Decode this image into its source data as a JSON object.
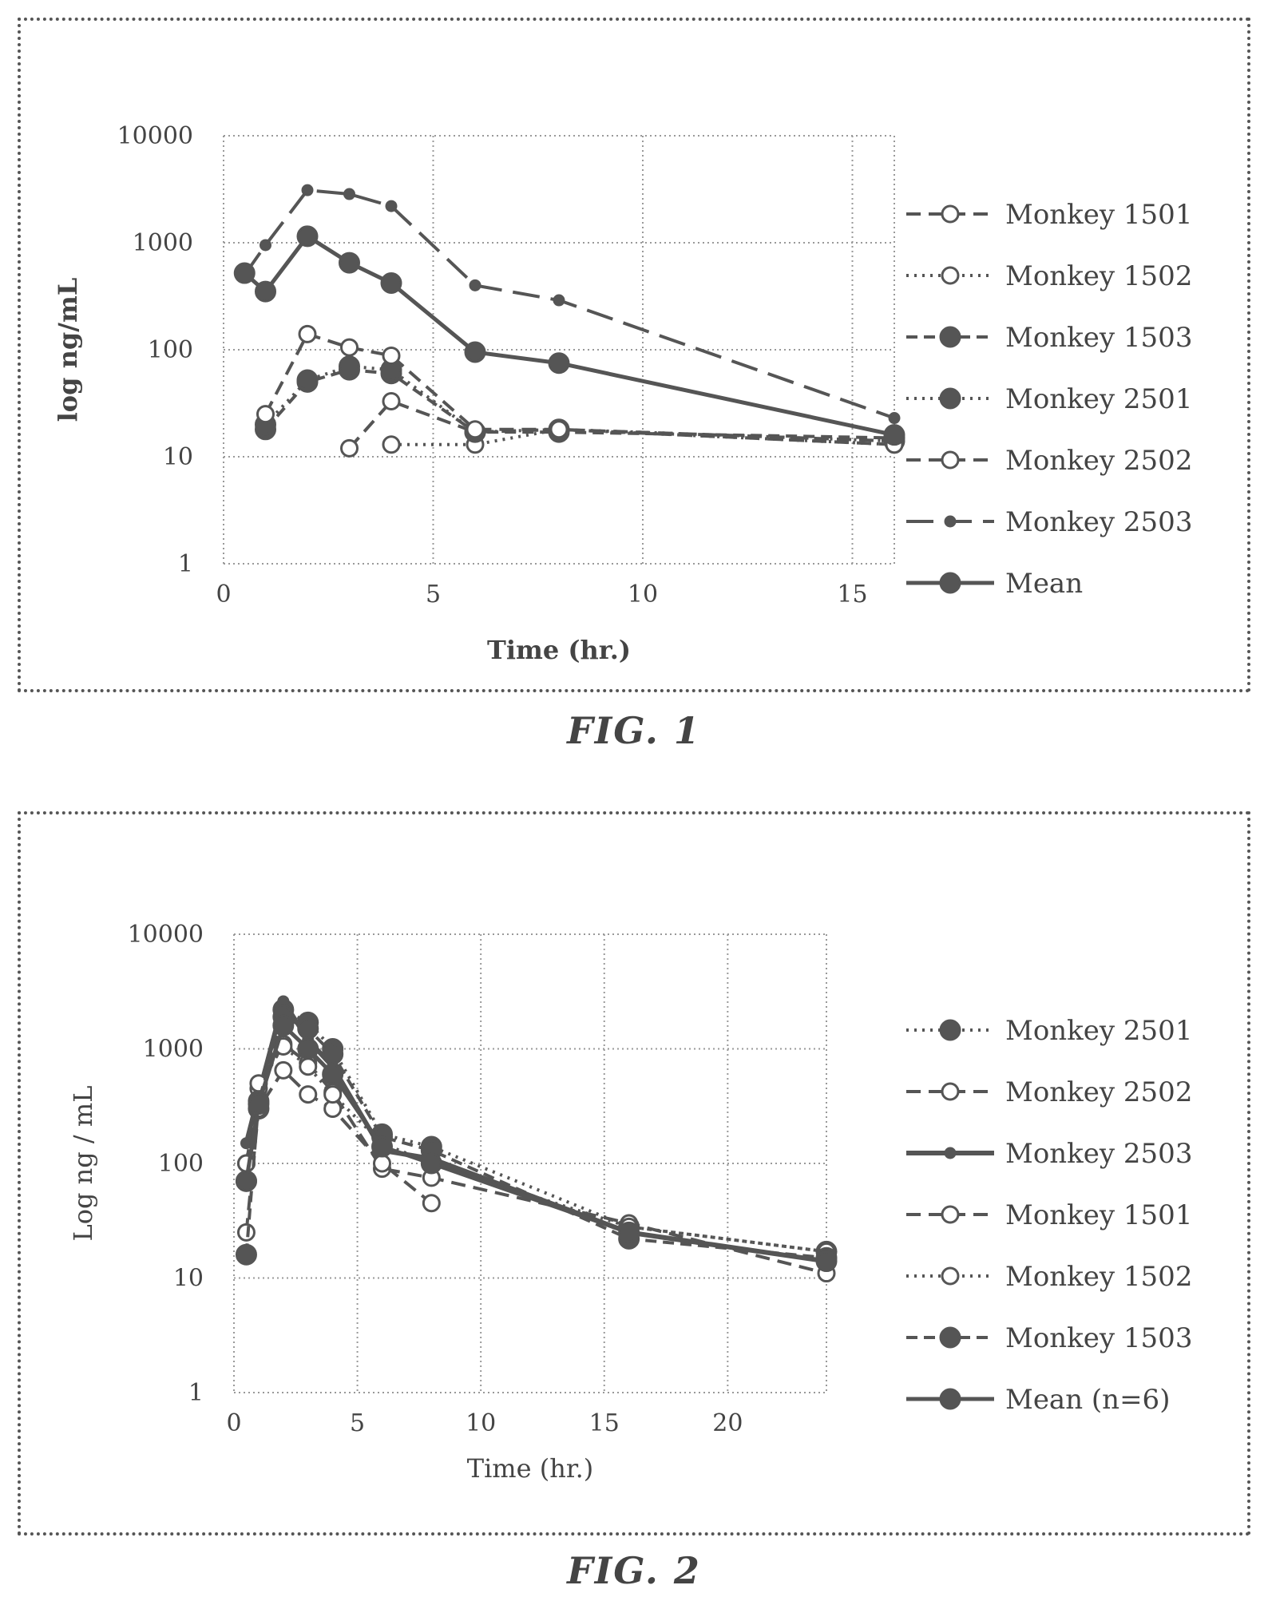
{
  "chart_data": [
    {
      "type": "line",
      "yscale": "log",
      "xlabel": "Time (hr.)",
      "ylabel": "log ng/mL",
      "xlim": [
        0,
        16
      ],
      "ylim": [
        1,
        10000
      ],
      "xticks": [
        "0",
        "5",
        "10",
        "15"
      ],
      "yticks": [
        "1",
        "10",
        "100",
        "1000",
        "10000"
      ],
      "grid": true,
      "legend_position": "right",
      "series": [
        {
          "name": "Monkey 1501",
          "style": "dash-open",
          "x": [
            3,
            4,
            6,
            8,
            16
          ],
          "y": [
            12,
            33,
            17,
            18,
            14
          ]
        },
        {
          "name": "Monkey 1502",
          "style": "dot-open",
          "x": [
            4,
            6,
            8,
            16
          ],
          "y": [
            13,
            13,
            18,
            13
          ]
        },
        {
          "name": "Monkey 1503",
          "style": "dash-filled",
          "x": [
            1,
            2,
            3,
            4,
            6,
            8,
            16
          ],
          "y": [
            18,
            50,
            65,
            60,
            17,
            17,
            15
          ]
        },
        {
          "name": "Monkey 2501",
          "style": "dot-filled",
          "x": [
            1,
            2,
            3,
            4,
            6,
            8,
            16
          ],
          "y": [
            20,
            52,
            70,
            65,
            17,
            18,
            14
          ]
        },
        {
          "name": "Monkey 2502",
          "style": "dash-open",
          "x": [
            1,
            2,
            3,
            4,
            6,
            8,
            16
          ],
          "y": [
            25,
            140,
            105,
            88,
            18,
            18,
            13
          ]
        },
        {
          "name": "Monkey 2503",
          "style": "longdash-small",
          "x": [
            0.5,
            1,
            2,
            3,
            4,
            6,
            8,
            16
          ],
          "y": [
            500,
            950,
            3100,
            2850,
            2200,
            400,
            290,
            23
          ]
        },
        {
          "name": "Mean",
          "style": "solid-filled",
          "x": [
            0.5,
            1,
            2,
            3,
            4,
            6,
            8,
            16
          ],
          "y": [
            520,
            350,
            1150,
            650,
            420,
            95,
            75,
            16
          ]
        }
      ]
    },
    {
      "type": "line",
      "yscale": "log",
      "xlabel": "Time (hr.)",
      "ylabel": "Log ng / mL",
      "xlim": [
        0,
        24
      ],
      "ylim": [
        1,
        10000
      ],
      "xticks": [
        "0",
        "5",
        "10",
        "15",
        "20"
      ],
      "yticks": [
        "1",
        "10",
        "100",
        "1000",
        "10000"
      ],
      "grid": true,
      "legend_position": "right",
      "series": [
        {
          "name": "Monkey 2501",
          "style": "dot-filled",
          "x": [
            0.5,
            1,
            2,
            3,
            4,
            6,
            8,
            16,
            24
          ],
          "y": [
            70,
            300,
            2200,
            1700,
            1000,
            180,
            140,
            28,
            17
          ]
        },
        {
          "name": "Monkey 2502",
          "style": "dash-open",
          "x": [
            0.5,
            1,
            2,
            3,
            4,
            6,
            8,
            16,
            24
          ],
          "y": [
            100,
            450,
            1100,
            750,
            420,
            90,
            75,
            30,
            11
          ]
        },
        {
          "name": "Monkey 2503",
          "style": "solid-small",
          "x": [
            0.5,
            1,
            2,
            3,
            4,
            6,
            8,
            16,
            24
          ],
          "y": [
            150,
            400,
            2600,
            1200,
            700,
            130,
            110,
            25,
            14
          ]
        },
        {
          "name": "Monkey 1501",
          "style": "dash-open",
          "x": [
            0.5,
            1,
            2,
            3,
            4,
            6,
            8
          ],
          "y": [
            25,
            300,
            650,
            400,
            300,
            100,
            45
          ]
        },
        {
          "name": "Monkey 1502",
          "style": "dot-open",
          "x": [
            0.5,
            1,
            2,
            3,
            4,
            6,
            8,
            16,
            24
          ],
          "y": [
            100,
            500,
            1050,
            700,
            400,
            150,
            100,
            28,
            17
          ]
        },
        {
          "name": "Monkey 1503",
          "style": "dash-filled",
          "x": [
            0.5,
            1,
            2,
            3,
            4,
            6,
            8,
            16,
            24
          ],
          "y": [
            16,
            350,
            1900,
            1500,
            900,
            170,
            130,
            22,
            15
          ]
        },
        {
          "name": "Mean (n=6)",
          "style": "solid-filled",
          "x": [
            0.5,
            1,
            2,
            3,
            4,
            6,
            8,
            16,
            24
          ],
          "y": [
            70,
            330,
            1600,
            1000,
            600,
            140,
            100,
            25,
            14
          ]
        }
      ]
    }
  ],
  "captions": {
    "fig1": "FIG. 1",
    "fig2": "FIG. 2"
  }
}
